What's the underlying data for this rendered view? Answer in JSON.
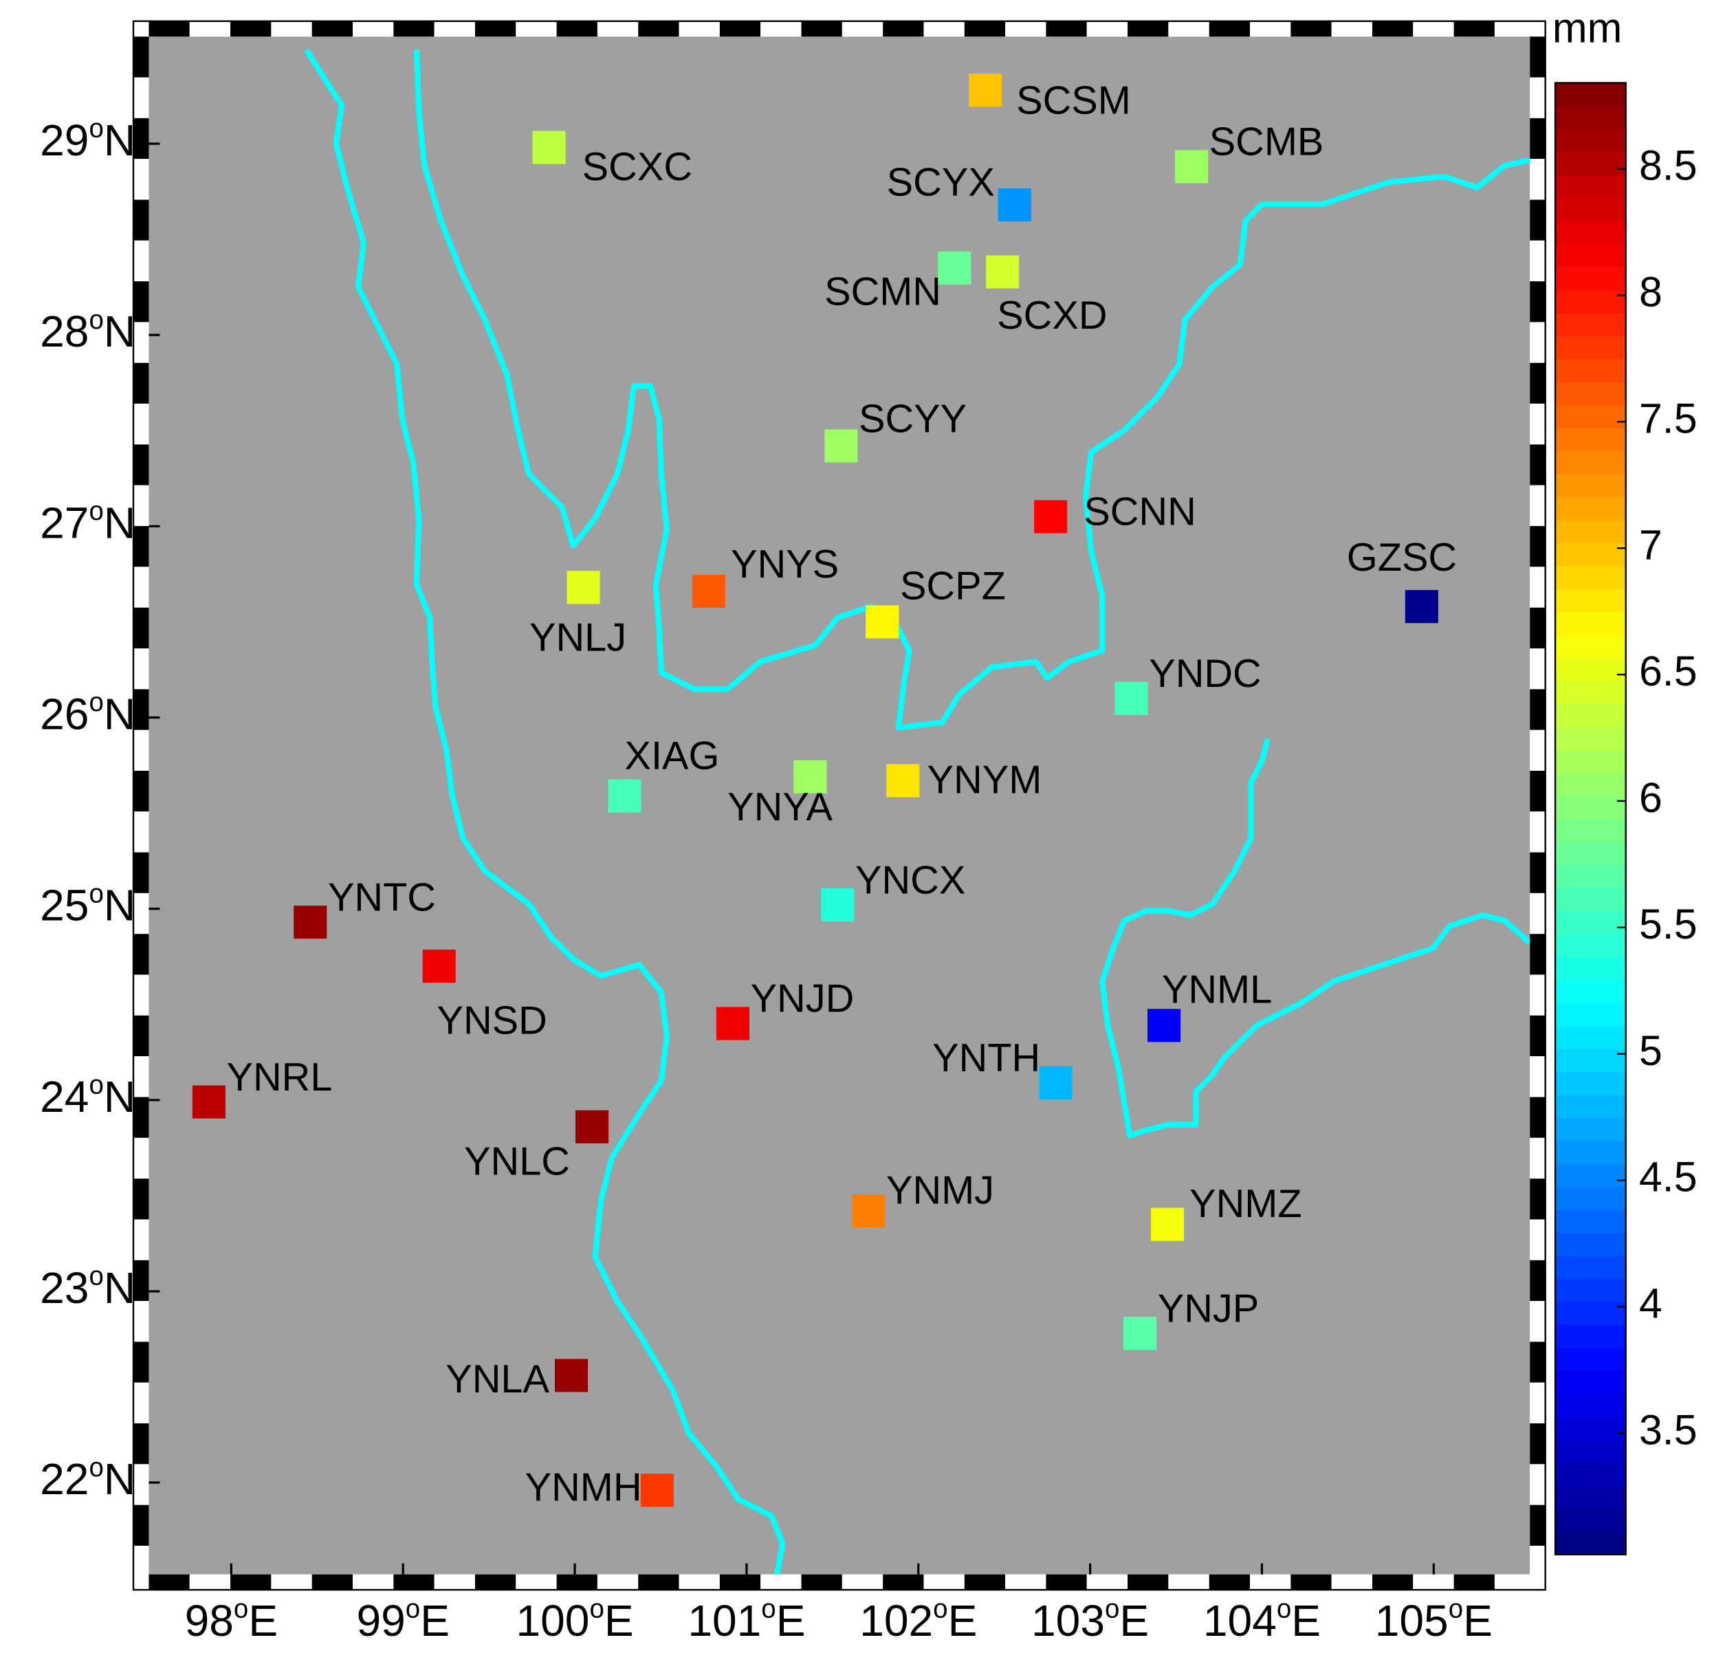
{
  "chart_data": {
    "type": "station-map",
    "xlim": [
      97.52,
      105.56
    ],
    "ylim": [
      21.52,
      29.56
    ],
    "xticks": [
      {
        "value": 98,
        "label": "98oE"
      },
      {
        "value": 99,
        "label": "99oE"
      },
      {
        "value": 100,
        "label": "100oE"
      },
      {
        "value": 101,
        "label": "101oE"
      },
      {
        "value": 102,
        "label": "102oE"
      },
      {
        "value": 103,
        "label": "103oE"
      },
      {
        "value": 104,
        "label": "104oE"
      },
      {
        "value": 105,
        "label": "105oE"
      }
    ],
    "yticks": [
      {
        "value": 22,
        "label": "22oN"
      },
      {
        "value": 23,
        "label": "23oN"
      },
      {
        "value": 24,
        "label": "24oN"
      },
      {
        "value": 25,
        "label": "25oN"
      },
      {
        "value": 26,
        "label": "26oN"
      },
      {
        "value": 27,
        "label": "27oN"
      },
      {
        "value": 28,
        "label": "28oN"
      },
      {
        "value": 29,
        "label": "29oN"
      }
    ],
    "colorbar_label": "mm",
    "clim": [
      3.02,
      8.84
    ],
    "colorbar_ticks": [
      3.5,
      4,
      4.5,
      5,
      5.5,
      6,
      6.5,
      7,
      7.5,
      8,
      8.5
    ],
    "colormap": "jet",
    "background": "#a0a0a0",
    "river_color": "#00ffff",
    "stations": {
      "names": [
        "SCSM",
        "SCXC",
        "SCMB",
        "SCYX",
        "SCMN",
        "SCXD",
        "SCYY",
        "SCNN",
        "YNYS",
        "YNLJ",
        "SCPZ",
        "GZSC",
        "YNDC",
        "XIAG",
        "YNYA",
        "YNYM",
        "YNCX",
        "YNTC",
        "YNSD",
        "YNJD",
        "YNML",
        "YNTH",
        "YNRL",
        "YNLC",
        "YNMJ",
        "YNMZ",
        "YNJP",
        "YNLA",
        "YNMH"
      ],
      "lon": [
        102.39,
        99.85,
        103.59,
        102.56,
        102.21,
        102.49,
        101.55,
        102.77,
        100.78,
        100.05,
        101.79,
        104.93,
        103.24,
        100.29,
        101.37,
        101.91,
        101.53,
        98.46,
        99.21,
        100.92,
        103.43,
        102.8,
        97.87,
        100.1,
        101.71,
        103.45,
        103.29,
        99.98,
        100.48
      ],
      "lat": [
        29.28,
        28.98,
        28.88,
        28.68,
        28.35,
        28.33,
        27.42,
        27.05,
        26.66,
        26.68,
        26.5,
        26.58,
        26.1,
        25.59,
        25.69,
        25.67,
        25.02,
        24.93,
        24.7,
        24.4,
        24.39,
        24.09,
        23.99,
        23.86,
        23.42,
        23.35,
        22.78,
        22.56,
        21.96
      ],
      "values": [
        7.0,
        6.3,
        6.1,
        4.6,
        5.8,
        6.4,
        6.1,
        8.1,
        7.6,
        6.5,
        6.7,
        3.1,
        5.6,
        5.6,
        6.1,
        6.8,
        5.4,
        8.7,
        8.2,
        8.2,
        3.7,
        4.8,
        8.5,
        8.7,
        7.4,
        6.6,
        5.7,
        8.7,
        7.8
      ]
    }
  }
}
